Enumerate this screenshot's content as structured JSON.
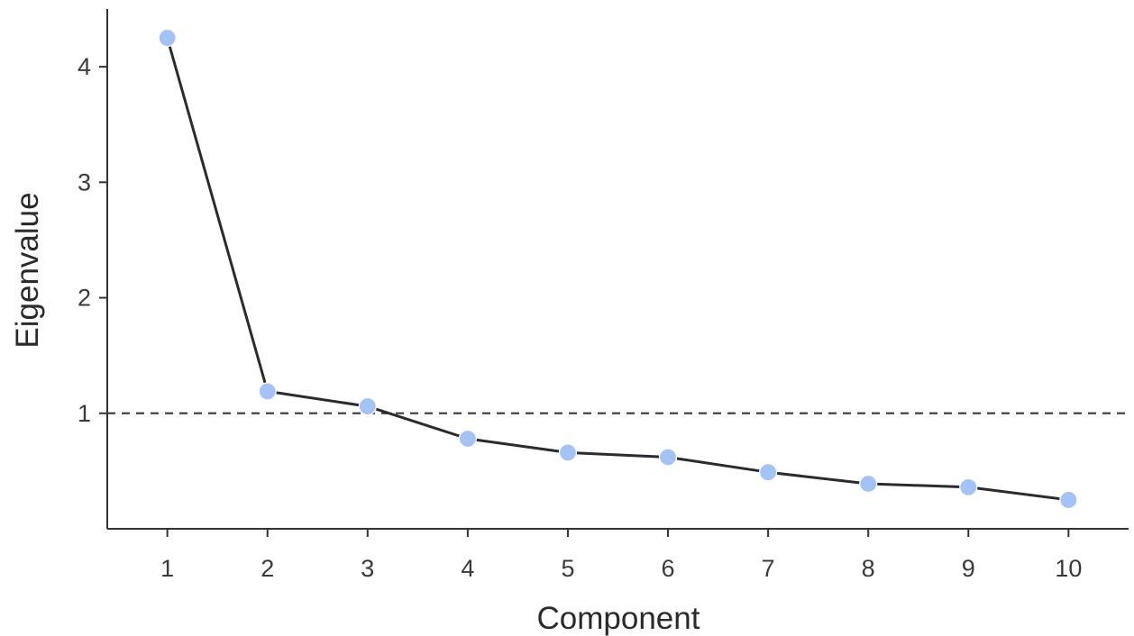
{
  "chart_data": {
    "type": "line",
    "xlabel": "Component",
    "ylabel": "Eigenvalue",
    "x": [
      1,
      2,
      3,
      4,
      5,
      6,
      7,
      8,
      9,
      10
    ],
    "x_ticks": [
      "1",
      "2",
      "3",
      "4",
      "5",
      "6",
      "7",
      "8",
      "9",
      "10"
    ],
    "y_ticks": [
      "1",
      "2",
      "3",
      "4"
    ],
    "xlim": [
      0.4,
      10.6
    ],
    "ylim": [
      0.0,
      4.5
    ],
    "series": [
      {
        "values": [
          4.25,
          1.19,
          1.06,
          0.78,
          0.66,
          0.62,
          0.49,
          0.39,
          0.36,
          0.25
        ],
        "line_color": "#2b2b2b",
        "marker_color": "#a4c2f4"
      }
    ],
    "reference_line": {
      "y": 1,
      "style": "dashed",
      "color": "#444444"
    },
    "grid": false,
    "legend": false
  }
}
